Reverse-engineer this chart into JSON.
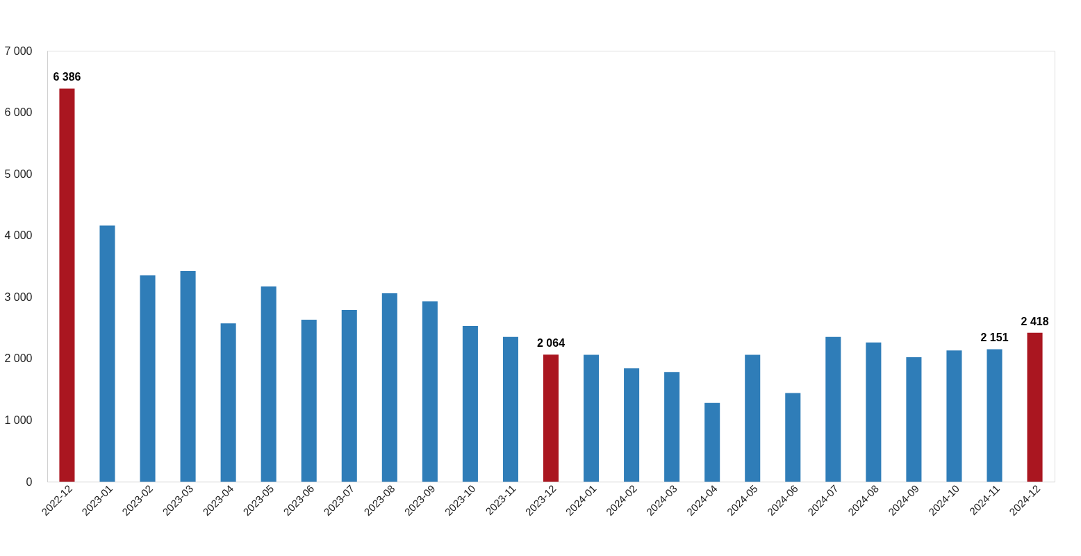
{
  "chart_data": {
    "type": "bar",
    "categories": [
      "2022-12",
      "2023-01",
      "2023-02",
      "2023-03",
      "2023-04",
      "2023-05",
      "2023-06",
      "2023-07",
      "2023-08",
      "2023-09",
      "2023-10",
      "2023-11",
      "2023-12",
      "2024-01",
      "2024-02",
      "2024-03",
      "2024-04",
      "2024-05",
      "2024-06",
      "2024-07",
      "2024-08",
      "2024-09",
      "2024-10",
      "2024-11",
      "2024-12"
    ],
    "values": [
      6386,
      4160,
      3350,
      3420,
      2570,
      3170,
      2630,
      2790,
      3060,
      2930,
      2530,
      2350,
      2064,
      2060,
      1840,
      1780,
      1280,
      2060,
      1440,
      2350,
      2260,
      2020,
      2130,
      2151,
      2418
    ],
    "colors": [
      "#aa1620",
      "#2f7db8",
      "#2f7db8",
      "#2f7db8",
      "#2f7db8",
      "#2f7db8",
      "#2f7db8",
      "#2f7db8",
      "#2f7db8",
      "#2f7db8",
      "#2f7db8",
      "#2f7db8",
      "#aa1620",
      "#2f7db8",
      "#2f7db8",
      "#2f7db8",
      "#2f7db8",
      "#2f7db8",
      "#2f7db8",
      "#2f7db8",
      "#2f7db8",
      "#2f7db8",
      "#2f7db8",
      "#2f7db8",
      "#aa1620"
    ],
    "value_labels": [
      "6 386",
      null,
      null,
      null,
      null,
      null,
      null,
      null,
      null,
      null,
      null,
      null,
      "2 064",
      null,
      null,
      null,
      null,
      null,
      null,
      null,
      null,
      null,
      null,
      "2 151",
      "2 418"
    ],
    "ylim": [
      0,
      7000
    ],
    "yticks": [
      0,
      {
        "value": 1000,
        "label": "1 000"
      },
      {
        "value": 2000,
        "label": "2 000"
      },
      {
        "value": 3000,
        "label": "3 000"
      },
      {
        "value": 4000,
        "label": "4 000"
      },
      {
        "value": 5000,
        "label": "5 000"
      },
      {
        "value": 6000,
        "label": "6 000"
      },
      {
        "value": 7000,
        "label": "7 000"
      }
    ],
    "grid": false
  }
}
